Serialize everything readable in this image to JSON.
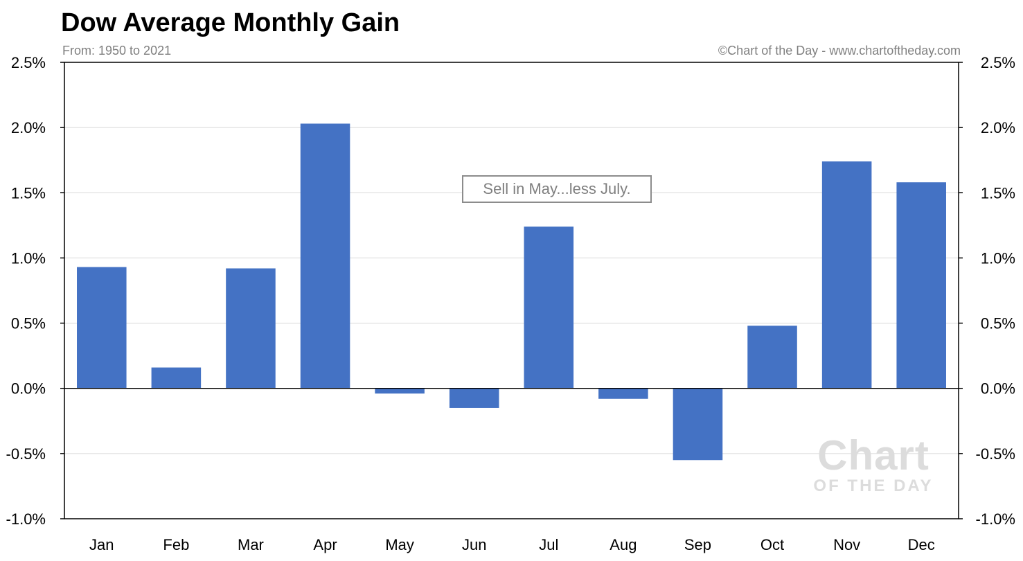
{
  "chart_data": {
    "type": "bar",
    "title": "Dow Average Monthly Gain",
    "subtitle": "From: 1950 to 2021",
    "source": "©Chart of the Day - www.chartoftheday.com",
    "annotation": "Sell in May...less July.",
    "watermark": {
      "main": "Chart",
      "sub": "OF THE DAY"
    },
    "categories": [
      "Jan",
      "Feb",
      "Mar",
      "Apr",
      "May",
      "Jun",
      "Jul",
      "Aug",
      "Sep",
      "Oct",
      "Nov",
      "Dec"
    ],
    "values": [
      0.93,
      0.16,
      0.92,
      2.03,
      -0.04,
      -0.15,
      1.24,
      -0.08,
      -0.55,
      0.48,
      1.74,
      1.58
    ],
    "ylim": [
      -1.0,
      2.5
    ],
    "yticks": [
      2.5,
      2.0,
      1.5,
      1.0,
      0.5,
      0.0,
      -0.5,
      -1.0
    ],
    "ytick_labels": [
      "2.5%",
      "2.0%",
      "1.5%",
      "1.0%",
      "0.5%",
      "0.0%",
      "-0.5%",
      "-1.0%"
    ],
    "xlabel": "",
    "ylabel": "",
    "grid": true,
    "secondary_axis": "right",
    "bar_color": "#4472c4",
    "grid_color": "#d9d9d9",
    "axis_color": "#000000"
  }
}
